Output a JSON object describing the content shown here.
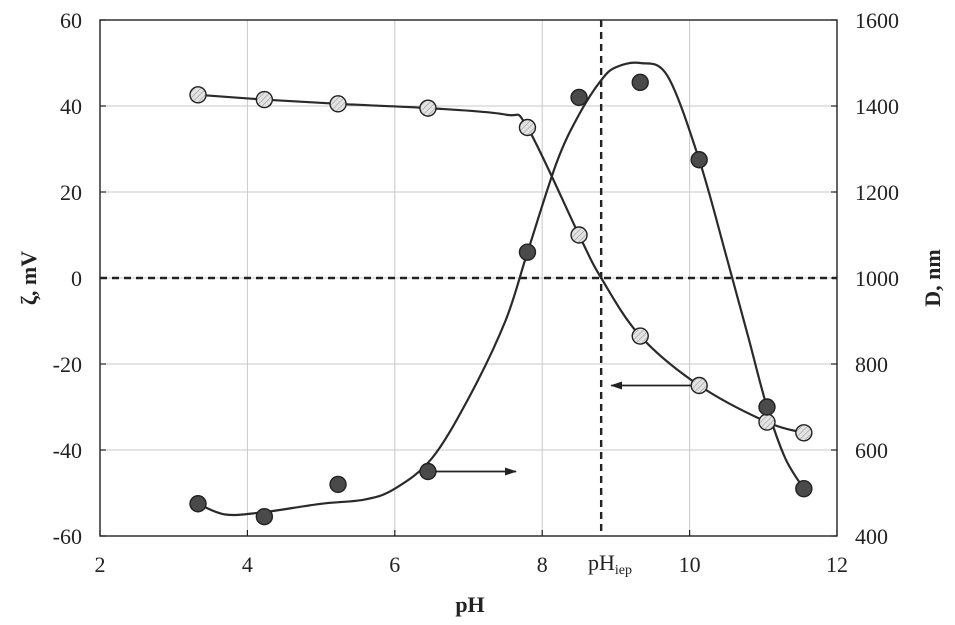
{
  "chart_data": {
    "type": "scatter",
    "xlabel": "pH",
    "ylabel_left": "ζ, mV",
    "ylabel_right": "D, nm",
    "xlim": [
      2,
      12
    ],
    "ylim_left": [
      -60,
      60
    ],
    "ylim_right": [
      400,
      1600
    ],
    "x_ticks": [
      "2",
      "4",
      "6",
      "8",
      "10",
      "12"
    ],
    "y_left_ticks": [
      "-60",
      "-40",
      "-20",
      "0",
      "20",
      "40",
      "60"
    ],
    "y_right_ticks": [
      "400",
      "600",
      "800",
      "1000",
      "1200",
      "1400",
      "1600"
    ],
    "grid": true,
    "iep": {
      "label": "pH",
      "sub": "iep",
      "x": 8.8
    },
    "zero_line_y": 0,
    "series": [
      {
        "axis": "left",
        "marker": "hatched-light",
        "points": [
          [
            3.33,
            42.6
          ],
          [
            4.23,
            41.5
          ],
          [
            5.23,
            40.5
          ],
          [
            6.45,
            39.5
          ],
          [
            7.8,
            35.0
          ],
          [
            8.5,
            10.0
          ],
          [
            9.33,
            -13.5
          ],
          [
            10.13,
            -25.0
          ],
          [
            11.05,
            -33.5
          ],
          [
            11.55,
            -36.0
          ]
        ],
        "curve": [
          [
            3.33,
            42.6
          ],
          [
            4.23,
            41.5
          ],
          [
            5.23,
            40.5
          ],
          [
            6.45,
            39.5
          ],
          [
            7.5,
            38.0
          ],
          [
            7.8,
            35.0
          ],
          [
            8.5,
            10.0
          ],
          [
            8.8,
            0.0
          ],
          [
            9.33,
            -13.5
          ],
          [
            10.13,
            -25.0
          ],
          [
            11.05,
            -33.5
          ],
          [
            11.55,
            -36.0
          ]
        ]
      },
      {
        "axis": "right",
        "marker": "filled-dark",
        "points": [
          [
            3.33,
            475
          ],
          [
            4.23,
            445
          ],
          [
            5.23,
            520
          ],
          [
            6.45,
            550
          ],
          [
            7.8,
            1060
          ],
          [
            8.5,
            1420
          ],
          [
            9.33,
            1455
          ],
          [
            10.13,
            1275
          ],
          [
            11.05,
            700
          ],
          [
            11.55,
            510
          ]
        ],
        "curve": [
          [
            3.33,
            475
          ],
          [
            3.7,
            450
          ],
          [
            4.2,
            455
          ],
          [
            5.0,
            475
          ],
          [
            5.6,
            485
          ],
          [
            6.0,
            510
          ],
          [
            6.5,
            580
          ],
          [
            7.0,
            720
          ],
          [
            7.5,
            900
          ],
          [
            7.8,
            1060
          ],
          [
            8.2,
            1270
          ],
          [
            8.5,
            1380
          ],
          [
            8.8,
            1460
          ],
          [
            9.0,
            1490
          ],
          [
            9.33,
            1500
          ],
          [
            9.7,
            1470
          ],
          [
            10.13,
            1275
          ],
          [
            10.5,
            1050
          ],
          [
            10.8,
            860
          ],
          [
            11.05,
            700
          ],
          [
            11.3,
            580
          ],
          [
            11.55,
            510
          ]
        ]
      }
    ],
    "annotations": [
      {
        "type": "arrow",
        "direction": "right",
        "near_series": 1
      },
      {
        "type": "arrow",
        "direction": "left",
        "near_series": 0
      }
    ]
  }
}
